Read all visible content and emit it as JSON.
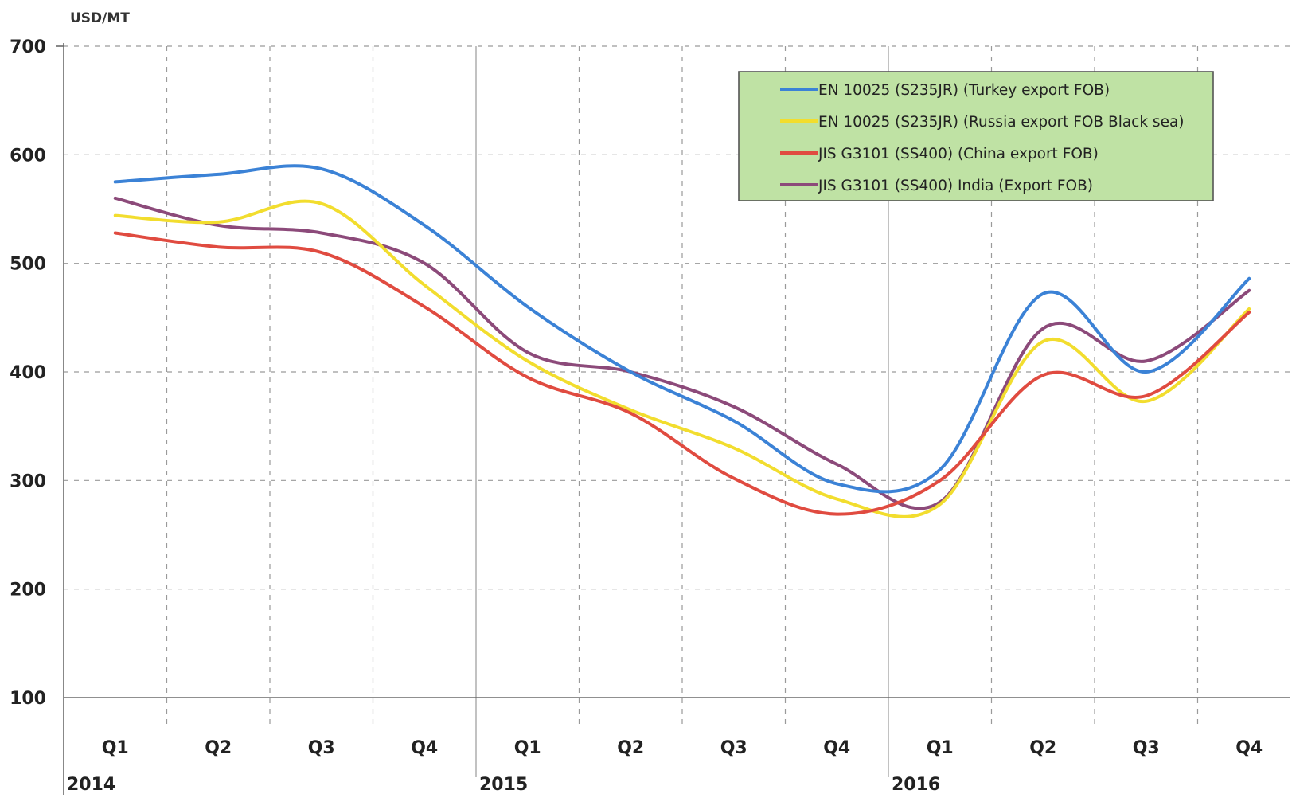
{
  "chart_data": {
    "type": "line",
    "ylabel": "USD/MT",
    "ylim": [
      100,
      700
    ],
    "yticks": [
      100,
      200,
      300,
      400,
      500,
      600,
      700
    ],
    "categories": [
      "Q1",
      "Q2",
      "Q3",
      "Q4",
      "Q1",
      "Q2",
      "Q3",
      "Q4",
      "Q1",
      "Q2",
      "Q3",
      "Q4"
    ],
    "years": [
      {
        "label": "2014",
        "start_index": 0
      },
      {
        "label": "2015",
        "start_index": 4
      },
      {
        "label": "2016",
        "start_index": 8
      }
    ],
    "grid": true,
    "legend_position": "top-right",
    "series": [
      {
        "name": "EN 10025 (S235JR) (Turkey export FOB)",
        "color": "#3b82d6",
        "values": [
          575,
          582,
          587,
          535,
          460,
          400,
          355,
          297,
          310,
          472,
          400,
          486
        ]
      },
      {
        "name": "EN 10025 (S235JR) (Russia export FOB Black sea)",
        "color": "#f2dd2e",
        "values": [
          544,
          538,
          555,
          480,
          410,
          365,
          330,
          283,
          278,
          428,
          373,
          458
        ]
      },
      {
        "name": "JIS G3101 (SS400) (China export FOB)",
        "color": "#e04b40",
        "values": [
          528,
          515,
          510,
          460,
          395,
          362,
          302,
          269,
          300,
          397,
          378,
          455
        ]
      },
      {
        "name": "JIS G3101 (SS400) India (Export FOB)",
        "color": "#8c4a7a",
        "values": [
          560,
          535,
          528,
          500,
          418,
          400,
          368,
          315,
          280,
          440,
          410,
          475
        ]
      }
    ]
  },
  "style": {
    "legend_bg": "#bfe2a4",
    "grid_color": "#9a9a9a"
  }
}
